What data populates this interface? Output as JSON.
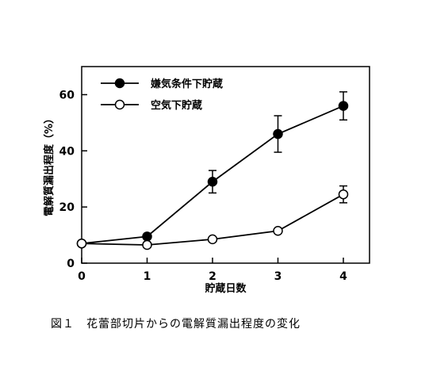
{
  "chart_data": {
    "type": "line",
    "x": [
      0,
      1,
      2,
      3,
      4
    ],
    "series": [
      {
        "name": "嫌気条件下貯蔵",
        "marker": "filled-circle",
        "values": [
          7,
          9.5,
          29,
          46,
          56
        ],
        "errors": [
          0,
          0,
          4,
          6.5,
          5
        ]
      },
      {
        "name": "空気下貯蔵",
        "marker": "open-circle",
        "values": [
          7,
          6.5,
          8.5,
          11.5,
          24.5
        ],
        "errors": [
          0,
          0,
          0,
          0,
          3
        ]
      }
    ],
    "xlabel": "貯蔵日数",
    "ylabel": "電解質漏出程度（%）",
    "xlim": [
      0,
      4.4
    ],
    "ylim": [
      0,
      70
    ],
    "xticks": [
      "0",
      "1",
      "2",
      "3",
      "4"
    ],
    "yticks": [
      "0",
      "20",
      "40",
      "60"
    ],
    "legend_position": "top-left",
    "grid": false,
    "colors": {
      "line": "#000000",
      "open_fill": "#ffffff"
    }
  },
  "caption": "図１　花蕾部切片からの電解質漏出程度の変化"
}
